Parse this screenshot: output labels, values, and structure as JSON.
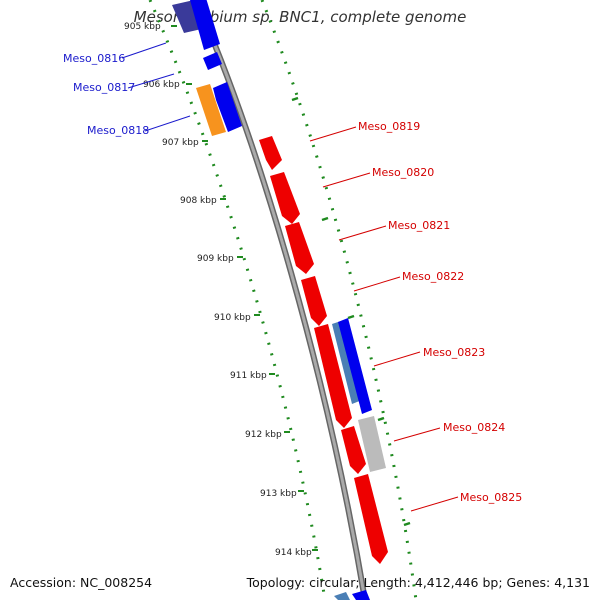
{
  "title": "Mesorhizobium sp. BNC1, complete genome",
  "accession": "Accession: NC_008254",
  "summary": "Topology: circular; Length: 4,412,446 bp; Genes: 4,131",
  "ticks": [
    "905 kbp",
    "906 kbp",
    "907 kbp",
    "908 kbp",
    "909 kbp",
    "910 kbp",
    "911 kbp",
    "912 kbp",
    "913 kbp",
    "914 kbp"
  ],
  "genes_left": [
    "Meso_0816",
    "Meso_0817",
    "Meso_0818"
  ],
  "genes_right": [
    "Meso_0819",
    "Meso_0820",
    "Meso_0821",
    "Meso_0822",
    "Meso_0823",
    "Meso_0824",
    "Meso_0825"
  ],
  "colors": {
    "backbone": "#8a8a8a",
    "reverse_gene": "#ee0000",
    "forward_gene": "#0000ee",
    "blue_light": "#4a7fb5",
    "navy": "#3a3a9a",
    "orange": "#f7931e",
    "grey_gene": "#bbbbbb",
    "gc_ticks": "#1f8a1f",
    "label_blue": "#1a1acc",
    "label_red": "#d40000"
  }
}
